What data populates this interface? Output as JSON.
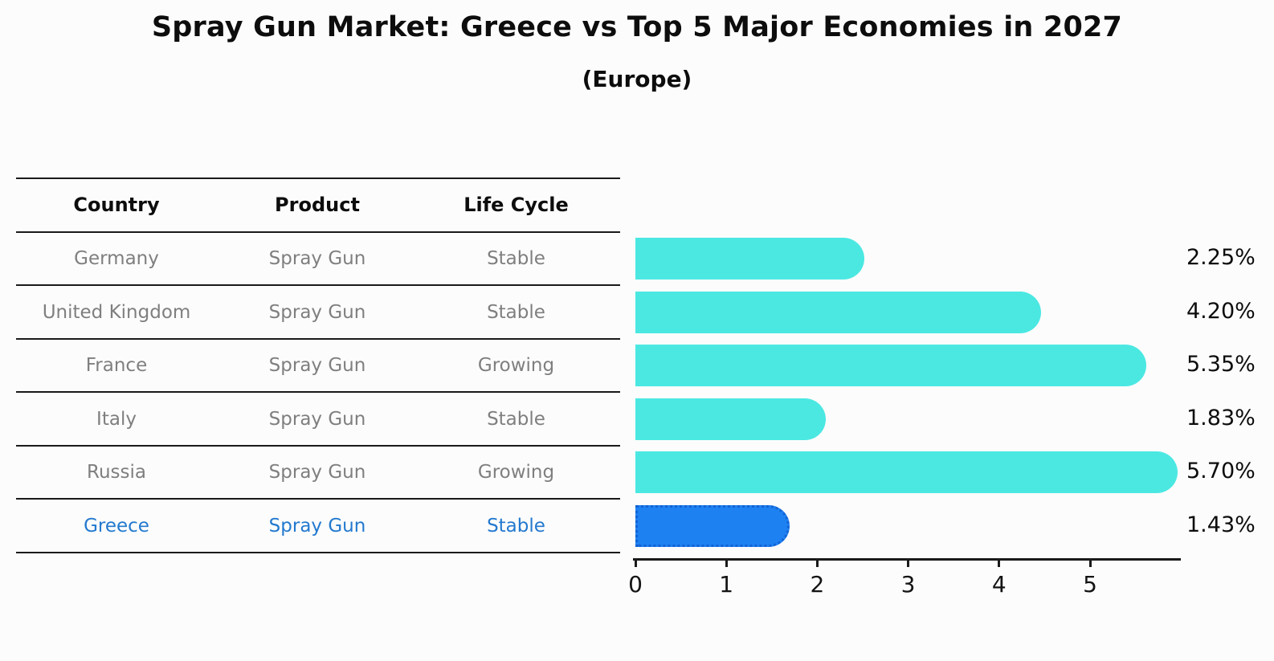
{
  "title": "Spray Gun Market: Greece vs Top 5 Major Economies in 2027",
  "subtitle": "(Europe)",
  "table": {
    "headers": [
      "Country",
      "Product",
      "Life Cycle"
    ],
    "rows": [
      {
        "country": "Germany",
        "product": "Spray Gun",
        "life_cycle": "Stable",
        "highlighted": false
      },
      {
        "country": "United Kingdom",
        "product": "Spray Gun",
        "life_cycle": "Stable",
        "highlighted": false
      },
      {
        "country": "France",
        "product": "Spray Gun",
        "life_cycle": "Growing",
        "highlighted": false
      },
      {
        "country": "Italy",
        "product": "Spray Gun",
        "life_cycle": "Stable",
        "highlighted": false
      },
      {
        "country": "Russia",
        "product": "Spray Gun",
        "life_cycle": "Growing",
        "highlighted": false
      },
      {
        "country": "Greece",
        "product": "Spray Gun",
        "life_cycle": "Stable",
        "highlighted": true
      }
    ]
  },
  "chart_data": {
    "type": "bar",
    "orientation": "horizontal",
    "title": "Spray Gun Market: Greece vs Top 5 Major Economies in 2027 (Europe)",
    "categories": [
      "Germany",
      "United Kingdom",
      "France",
      "Italy",
      "Russia",
      "Greece"
    ],
    "values": [
      2.25,
      4.2,
      5.35,
      1.83,
      5.7,
      1.43
    ],
    "value_labels": [
      "2.25%",
      "4.20%",
      "5.35%",
      "1.83%",
      "5.70%",
      "1.43%"
    ],
    "highlight_index": 5,
    "x_ticks": [
      0,
      1,
      2,
      3,
      4,
      5
    ],
    "xlim": [
      0,
      6
    ],
    "grid": false,
    "legend": null,
    "bar_color": "#4be8e2",
    "highlight_bar_color": "#1e81f1",
    "highlight_border_color": "#1263d6",
    "highlight_text_color": "#2379cf",
    "text_color_muted": "#7f7f7f",
    "text_color": "#0d0d0d"
  }
}
